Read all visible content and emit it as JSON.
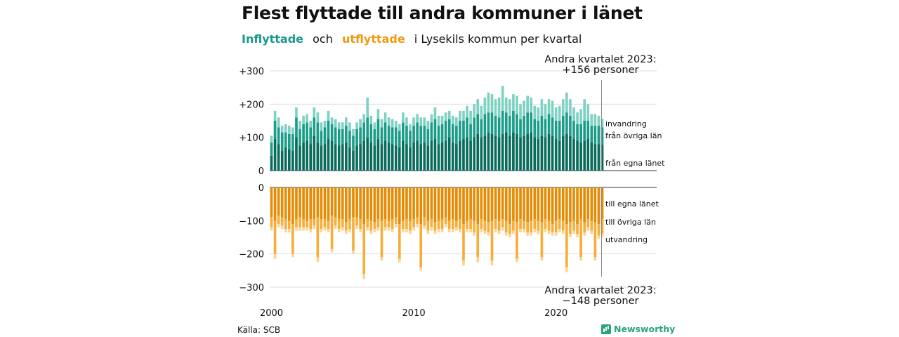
{
  "title": "Flest flyttade till andra kommuner i länet",
  "subtitle": {
    "in_label": "Inflyttade",
    "and": "och",
    "out_label": "utflyttade",
    "rest": "i Lysekils  kommun  per  kvartal"
  },
  "source": "Källa: SCB",
  "brand": "Newsworthy",
  "colors": {
    "in_dark": "#086b5b",
    "in_mid": "#1b9c88",
    "in_light": "#7fd2c3",
    "out_dark": "#e58c05",
    "out_mid": "#f6ad3a",
    "out_light": "#fcd596"
  },
  "chart_data": {
    "type": "bar",
    "stacked": true,
    "x_unit": "kvartal",
    "x_start": "2000Q1",
    "x_end": "2023Q2",
    "x_ticks": [
      "2000",
      "2010",
      "2020"
    ],
    "y_ticks_top": [
      "+300",
      "+200",
      "+100",
      "0"
    ],
    "y_ticks_bottom": [
      "0",
      "−100",
      "−200",
      "−300"
    ],
    "ylim_in": [
      0,
      300
    ],
    "ylim_out": [
      -300,
      0
    ],
    "annotation_top": [
      "Andra kvartalet 2023:",
      "+156 personer"
    ],
    "annotation_bottom": [
      "Andra kvartalet 2023:",
      "−148 personer"
    ],
    "in_labels": {
      "total": "invandring",
      "other": "från övriga län",
      "own": "från egna länet"
    },
    "out_labels": {
      "own": "till egna länet",
      "other": "till övriga län",
      "total": "utvandring"
    },
    "series": [
      {
        "name": "från egna länet",
        "values": [
          45,
          95,
          80,
          60,
          70,
          65,
          60,
          100,
          75,
          85,
          90,
          80,
          105,
          85,
          75,
          80,
          95,
          90,
          80,
          75,
          80,
          85,
          70,
          60,
          75,
          80,
          90,
          100,
          85,
          75,
          95,
          80,
          90,
          85,
          80,
          75,
          70,
          90,
          80,
          70,
          85,
          90,
          80,
          85,
          75,
          90,
          95,
          80,
          85,
          90,
          100,
          85,
          80,
          90,
          95,
          100,
          90,
          100,
          110,
          100,
          105,
          115,
          110,
          105,
          100,
          110,
          115,
          105,
          115,
          110,
          100,
          105,
          110,
          115,
          100,
          95,
          105,
          100,
          110,
          105,
          95,
          90,
          105,
          110,
          105,
          95,
          90,
          85,
          90,
          95,
          85,
          80,
          80,
          78
        ]
      },
      {
        "name": "från övriga län",
        "values": [
          40,
          55,
          50,
          55,
          45,
          45,
          50,
          60,
          50,
          55,
          55,
          50,
          55,
          60,
          45,
          50,
          55,
          50,
          50,
          50,
          45,
          50,
          50,
          45,
          50,
          50,
          55,
          60,
          55,
          50,
          60,
          50,
          55,
          50,
          50,
          55,
          50,
          55,
          55,
          50,
          50,
          55,
          55,
          50,
          50,
          55,
          60,
          55,
          55,
          60,
          55,
          55,
          55,
          60,
          55,
          60,
          50,
          60,
          60,
          55,
          65,
          60,
          65,
          60,
          60,
          70,
          60,
          60,
          65,
          60,
          55,
          60,
          65,
          60,
          55,
          55,
          60,
          55,
          60,
          55,
          55,
          60,
          60,
          65,
          60,
          55,
          50,
          55,
          60,
          55,
          50,
          55,
          55,
          52
        ]
      },
      {
        "name": "invandring",
        "values": [
          20,
          30,
          30,
          20,
          25,
          25,
          20,
          30,
          25,
          25,
          25,
          20,
          30,
          30,
          25,
          20,
          30,
          20,
          25,
          20,
          20,
          25,
          25,
          20,
          20,
          25,
          25,
          60,
          25,
          20,
          30,
          25,
          30,
          25,
          25,
          20,
          20,
          30,
          25,
          20,
          25,
          25,
          25,
          25,
          25,
          25,
          35,
          30,
          25,
          25,
          25,
          25,
          25,
          30,
          30,
          35,
          40,
          40,
          45,
          40,
          50,
          60,
          55,
          50,
          60,
          75,
          45,
          50,
          50,
          55,
          45,
          45,
          50,
          45,
          40,
          40,
          50,
          45,
          45,
          50,
          40,
          45,
          50,
          60,
          50,
          40,
          35,
          45,
          65,
          50,
          35,
          35,
          30,
          26
        ]
      },
      {
        "name": "till egna länet",
        "values": [
          -90,
          -100,
          -85,
          -90,
          -95,
          -100,
          -110,
          -95,
          -90,
          -95,
          -100,
          -95,
          -95,
          -90,
          -95,
          -95,
          -100,
          -85,
          -90,
          -95,
          -95,
          -105,
          -95,
          -90,
          -90,
          -95,
          -110,
          -95,
          -100,
          -105,
          -95,
          -100,
          -95,
          -100,
          -95,
          -90,
          -110,
          -100,
          -95,
          -100,
          -95,
          -90,
          -110,
          -90,
          -100,
          -95,
          -105,
          -100,
          -95,
          -90,
          -100,
          -95,
          -100,
          -95,
          -110,
          -100,
          -95,
          -100,
          -110,
          -95,
          -100,
          -105,
          -100,
          -95,
          -100,
          -95,
          -100,
          -110,
          -100,
          -105,
          -95,
          -100,
          -105,
          -100,
          -95,
          -100,
          -105,
          -95,
          -100,
          -110,
          -100,
          -95,
          -100,
          -110,
          -105,
          -100,
          -110,
          -95,
          -105,
          -95,
          -100,
          -105,
          -110,
          -95
        ]
      },
      {
        "name": "till övriga län",
        "values": [
          -30,
          -100,
          -25,
          -25,
          -30,
          -25,
          -90,
          -25,
          -30,
          -25,
          -20,
          -30,
          -20,
          -120,
          -30,
          -25,
          -25,
          -100,
          -25,
          -30,
          -25,
          -25,
          -30,
          -100,
          -25,
          -30,
          -150,
          -25,
          -30,
          -20,
          -25,
          -110,
          -25,
          -20,
          -30,
          -20,
          -105,
          -25,
          -30,
          -30,
          -25,
          -20,
          -130,
          -25,
          -30,
          -25,
          -25,
          -25,
          -30,
          -20,
          -25,
          -30,
          -20,
          -30,
          -110,
          -25,
          -30,
          -35,
          -100,
          -30,
          -30,
          -30,
          -120,
          -30,
          -30,
          -25,
          -35,
          -30,
          -30,
          -110,
          -30,
          -25,
          -30,
          -35,
          -30,
          -30,
          -105,
          -30,
          -30,
          -25,
          -35,
          -30,
          -30,
          -130,
          -35,
          -30,
          -30,
          -115,
          -30,
          -25,
          -30,
          -105,
          -35,
          -45
        ]
      },
      {
        "name": "utvandring",
        "values": [
          -10,
          -15,
          -10,
          -10,
          -10,
          -10,
          -10,
          -10,
          -10,
          -10,
          -10,
          -10,
          -10,
          -15,
          -10,
          -10,
          -10,
          -10,
          -10,
          -10,
          -10,
          -10,
          -10,
          -10,
          -10,
          -10,
          -15,
          -10,
          -10,
          -10,
          -10,
          -10,
          -10,
          -10,
          -10,
          -10,
          -10,
          -10,
          -10,
          -10,
          -10,
          -10,
          -10,
          -10,
          -10,
          -10,
          -10,
          -10,
          -10,
          -10,
          -10,
          -10,
          -10,
          -10,
          -15,
          -10,
          -10,
          -10,
          -15,
          -10,
          -10,
          -10,
          -15,
          -10,
          -10,
          -10,
          -10,
          -10,
          -10,
          -10,
          -10,
          -10,
          -10,
          -10,
          -10,
          -10,
          -10,
          -10,
          -10,
          -10,
          -10,
          -10,
          -10,
          -15,
          -10,
          -10,
          -10,
          -10,
          -10,
          -10,
          -10,
          -10,
          -10,
          -8
        ]
      }
    ]
  }
}
